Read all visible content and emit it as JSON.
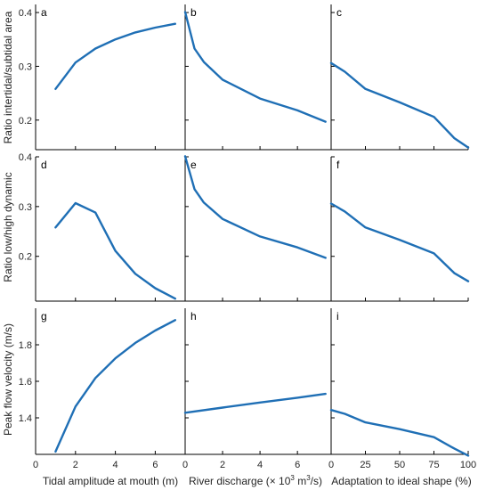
{
  "accent_color": "#1f6fb5",
  "ylabels": {
    "row1": "Ratio intertidal/subtidal area",
    "row2": "Ratio low/high dynamic",
    "row3": "Peak flow velocity (m/s)"
  },
  "xlabels": {
    "col1": "Tidal amplitude at mouth (m)",
    "col2": {
      "prefix": "River discharge (",
      "times": "×",
      "base": " 10",
      "exp": "3",
      "mid": " m",
      "exp2": "3",
      "suffix": "/s)"
    },
    "col3": "Adaptation to ideal shape (%)"
  },
  "chart_data": [
    {
      "type": "line",
      "panel": "a",
      "x": [
        1,
        2,
        3,
        4,
        5,
        6,
        7
      ],
      "y": [
        0.258,
        0.307,
        0.333,
        0.35,
        0.363,
        0.372,
        0.379
      ],
      "xlim": [
        0,
        7.5
      ],
      "ylim": [
        0.145,
        0.415
      ],
      "xticks": [
        0,
        2,
        4,
        6
      ],
      "yticks": [
        0.2,
        0.3,
        0.4
      ],
      "xticklabels": [
        "",
        "",
        "",
        ""
      ],
      "yticklabels": [
        "0.2",
        "0.3",
        "0.4"
      ]
    },
    {
      "type": "line",
      "panel": "b",
      "x": [
        0,
        0.5,
        1,
        2,
        4,
        6,
        7.5
      ],
      "y": [
        0.401,
        0.333,
        0.308,
        0.275,
        0.24,
        0.218,
        0.197
      ],
      "xlim": [
        0,
        7.8
      ],
      "ylim": [
        0.145,
        0.415
      ],
      "xticks": [
        0,
        2,
        4,
        6
      ],
      "yticks": [
        0.2,
        0.3,
        0.4
      ],
      "xticklabels": [
        "",
        "",
        "",
        ""
      ],
      "yticklabels": [
        "",
        "",
        ""
      ]
    },
    {
      "type": "line",
      "panel": "c",
      "x": [
        0,
        10,
        25,
        50,
        75,
        90,
        100
      ],
      "y": [
        0.306,
        0.29,
        0.258,
        0.233,
        0.206,
        0.166,
        0.149
      ],
      "xlim": [
        0,
        100
      ],
      "ylim": [
        0.145,
        0.415
      ],
      "xticks": [
        0,
        25,
        50,
        75,
        100
      ],
      "yticks": [
        0.2,
        0.3,
        0.4
      ],
      "xticklabels": [
        "",
        "",
        "",
        "",
        ""
      ],
      "yticklabels": [
        "",
        "",
        ""
      ]
    },
    {
      "type": "line",
      "panel": "d",
      "x": [
        1,
        2,
        3,
        4,
        5,
        6,
        7
      ],
      "y": [
        0.258,
        0.307,
        0.288,
        0.211,
        0.165,
        0.136,
        0.115
      ],
      "xlim": [
        0,
        7.5
      ],
      "ylim": [
        0.11,
        0.4
      ],
      "xticks": [
        0,
        2,
        4,
        6
      ],
      "yticks": [
        0.2,
        0.3,
        0.4
      ],
      "xticklabels": [
        "",
        "",
        "",
        ""
      ],
      "yticklabels": [
        "0.2",
        "0.3",
        "0.4"
      ]
    },
    {
      "type": "line",
      "panel": "e",
      "x": [
        0,
        0.5,
        1,
        2,
        4,
        6,
        7.5
      ],
      "y": [
        0.401,
        0.335,
        0.308,
        0.275,
        0.24,
        0.218,
        0.197
      ],
      "xlim": [
        0,
        7.8
      ],
      "ylim": [
        0.11,
        0.4
      ],
      "xticks": [
        0,
        2,
        4,
        6
      ],
      "yticks": [
        0.2,
        0.3,
        0.4
      ],
      "xticklabels": [
        "",
        "",
        "",
        ""
      ],
      "yticklabels": [
        "",
        "",
        ""
      ]
    },
    {
      "type": "line",
      "panel": "f",
      "x": [
        0,
        10,
        25,
        50,
        75,
        90,
        100
      ],
      "y": [
        0.306,
        0.29,
        0.258,
        0.233,
        0.206,
        0.166,
        0.15
      ],
      "xlim": [
        0,
        100
      ],
      "ylim": [
        0.11,
        0.4
      ],
      "xticks": [
        0,
        25,
        50,
        75,
        100
      ],
      "yticks": [
        0.2,
        0.3,
        0.4
      ],
      "xticklabels": [
        "",
        "",
        "",
        "",
        ""
      ],
      "yticklabels": [
        "",
        "",
        ""
      ]
    },
    {
      "type": "line",
      "panel": "g",
      "x": [
        1,
        2,
        3,
        4,
        5,
        6,
        7
      ],
      "y": [
        1.215,
        1.462,
        1.618,
        1.726,
        1.81,
        1.878,
        1.935
      ],
      "xlim": [
        0,
        7.5
      ],
      "ylim": [
        1.2,
        2.0
      ],
      "xticks": [
        0,
        2,
        4,
        6
      ],
      "yticks": [
        1.4,
        1.6,
        1.8
      ],
      "xticklabels": [
        "0",
        "2",
        "4",
        "6"
      ],
      "yticklabels": [
        "1.4",
        "1.6",
        "1.8"
      ]
    },
    {
      "type": "line",
      "panel": "h",
      "x": [
        0,
        2,
        4,
        6,
        7.5
      ],
      "y": [
        1.428,
        1.456,
        1.484,
        1.51,
        1.531
      ],
      "xlim": [
        0,
        7.8
      ],
      "ylim": [
        1.2,
        2.0
      ],
      "xticks": [
        0,
        2,
        4,
        6
      ],
      "yticks": [
        1.4,
        1.6,
        1.8
      ],
      "xticklabels": [
        "0",
        "2",
        "4",
        "6"
      ],
      "yticklabels": [
        "",
        "",
        ""
      ]
    },
    {
      "type": "line",
      "panel": "i",
      "x": [
        0,
        10,
        25,
        50,
        75,
        90,
        100
      ],
      "y": [
        1.443,
        1.422,
        1.375,
        1.338,
        1.294,
        1.231,
        1.193
      ],
      "xlim": [
        0,
        100
      ],
      "ylim": [
        1.2,
        2.0
      ],
      "xticks": [
        0,
        25,
        50,
        75,
        100
      ],
      "yticks": [
        1.4,
        1.6,
        1.8
      ],
      "xticklabels": [
        "0",
        "25",
        "50",
        "75",
        "100"
      ],
      "yticklabels": [
        "",
        "",
        ""
      ]
    }
  ]
}
